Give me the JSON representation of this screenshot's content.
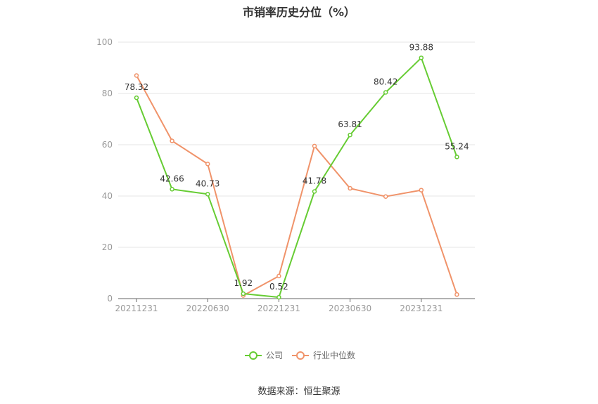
{
  "chart_data": {
    "type": "line",
    "title": "市销率历史分位（%）",
    "ylim": [
      0,
      100
    ],
    "yticks": [
      0,
      20,
      40,
      60,
      80,
      100
    ],
    "xtick_labels": [
      "20211231",
      "20220630",
      "20221231",
      "20230630",
      "20231231"
    ],
    "xtick_indices": [
      0,
      2,
      4,
      6,
      8
    ],
    "point_count": 10,
    "grid": true,
    "legend_position": "bottom-center",
    "series": [
      {
        "name": "公司",
        "color": "#66cc33",
        "values": [
          78.32,
          42.66,
          40.73,
          1.92,
          0.52,
          41.78,
          63.81,
          80.42,
          93.88,
          55.24
        ],
        "labels": [
          "78.32",
          "42.66",
          "40.73",
          "1.92",
          "0.52",
          "41.78",
          "63.81",
          "80.42",
          "93.88",
          "55.24"
        ]
      },
      {
        "name": "行业中位数",
        "color": "#f0936a",
        "values": [
          87,
          61.5,
          52.5,
          1.2,
          8.8,
          59.5,
          43,
          39.8,
          42.3,
          1.6
        ]
      }
    ]
  },
  "footer": {
    "source": "数据来源：恒生聚源"
  }
}
